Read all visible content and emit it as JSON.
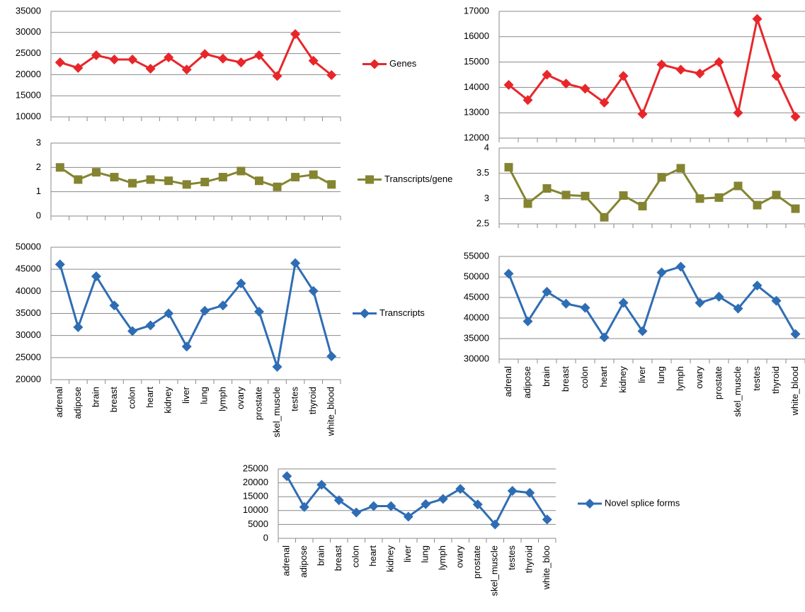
{
  "chart_data": [
    {
      "type": "line",
      "ylim": [
        10000,
        35000
      ],
      "yticks": [
        10000,
        15000,
        20000,
        25000,
        30000,
        35000
      ],
      "grid": true,
      "series": [
        {
          "name": "Genes",
          "color": "#e8262a",
          "marker": "diamond",
          "values": [
            22900,
            21600,
            24600,
            23600,
            23600,
            21400,
            24100,
            21200,
            24900,
            23800,
            22900,
            24600,
            19700,
            29600,
            23300,
            19900
          ]
        }
      ]
    },
    {
      "type": "line",
      "ylim": [
        0,
        3
      ],
      "yticks": [
        0,
        1,
        2,
        3
      ],
      "grid": true,
      "series": [
        {
          "name": "Transcripts/gene",
          "color": "#848431",
          "marker": "square",
          "values": [
            2.0,
            1.5,
            1.8,
            1.6,
            1.35,
            1.5,
            1.45,
            1.3,
            1.4,
            1.6,
            1.85,
            1.45,
            1.2,
            1.6,
            1.7,
            1.3
          ]
        }
      ]
    },
    {
      "type": "line",
      "ylim": [
        20000,
        50000
      ],
      "yticks": [
        20000,
        25000,
        30000,
        35000,
        40000,
        45000,
        50000
      ],
      "grid": true,
      "categories": [
        "adrenal",
        "adipose",
        "brain",
        "breast",
        "colon",
        "heart",
        "kidney",
        "liver",
        "lung",
        "lymph",
        "ovary",
        "prostate",
        "skel_muscle",
        "testes",
        "thyroid",
        "white_blood"
      ],
      "series": [
        {
          "name": "Transcripts",
          "color": "#2e6db4",
          "marker": "diamond",
          "values": [
            46100,
            31900,
            43400,
            36800,
            31000,
            32300,
            35000,
            27500,
            35600,
            36800,
            41800,
            35400,
            22900,
            46400,
            40100,
            25300
          ]
        }
      ]
    },
    {
      "type": "line",
      "ylim": [
        12000,
        17000
      ],
      "yticks": [
        12000,
        13000,
        14000,
        15000,
        16000,
        17000
      ],
      "grid": true,
      "series": [
        {
          "color": "#e8262a",
          "marker": "diamond",
          "values": [
            14100,
            13500,
            14500,
            14150,
            13950,
            13400,
            14450,
            12950,
            14900,
            14700,
            14550,
            15000,
            13000,
            16700,
            14450,
            12850
          ]
        }
      ]
    },
    {
      "type": "line",
      "ylim": [
        2.5,
        4
      ],
      "yticks": [
        2.5,
        3,
        3.5,
        4
      ],
      "grid": true,
      "series": [
        {
          "color": "#848431",
          "marker": "square",
          "values": [
            3.62,
            2.9,
            3.2,
            3.07,
            3.05,
            2.63,
            3.06,
            2.85,
            3.42,
            3.6,
            3.0,
            3.02,
            3.25,
            2.87,
            3.07,
            2.8
          ]
        }
      ]
    },
    {
      "type": "line",
      "ylim": [
        30000,
        55000
      ],
      "yticks": [
        30000,
        35000,
        40000,
        45000,
        50000,
        55000
      ],
      "grid": true,
      "categories": [
        "adrenal",
        "adipose",
        "brain",
        "breast",
        "colon",
        "heart",
        "kidney",
        "liver",
        "lung",
        "lymph",
        "ovary",
        "prostate",
        "skel_muscle",
        "testes",
        "thyroid",
        "white_blood"
      ],
      "series": [
        {
          "color": "#2e6db4",
          "marker": "diamond",
          "values": [
            50800,
            39200,
            46400,
            43500,
            42500,
            35300,
            43700,
            36800,
            51100,
            52500,
            43700,
            45200,
            42300,
            47900,
            44200,
            36100
          ]
        }
      ]
    },
    {
      "type": "line",
      "ylim": [
        0,
        25000
      ],
      "yticks": [
        0,
        5000,
        10000,
        15000,
        20000,
        25000
      ],
      "grid": true,
      "categories": [
        "adrenal",
        "adipose",
        "brain",
        "breast",
        "colon",
        "heart",
        "kidney",
        "liver",
        "lung",
        "lymph",
        "ovary",
        "prostate",
        "skel_muscle",
        "testes",
        "thyroid",
        "white_bloo"
      ],
      "series": [
        {
          "name": "Novel splice forms",
          "color": "#2e6db4",
          "marker": "diamond",
          "values": [
            22400,
            11300,
            19300,
            13700,
            9300,
            11600,
            11600,
            7800,
            12300,
            14200,
            17800,
            12200,
            5000,
            17100,
            16400,
            6800
          ]
        }
      ]
    }
  ]
}
